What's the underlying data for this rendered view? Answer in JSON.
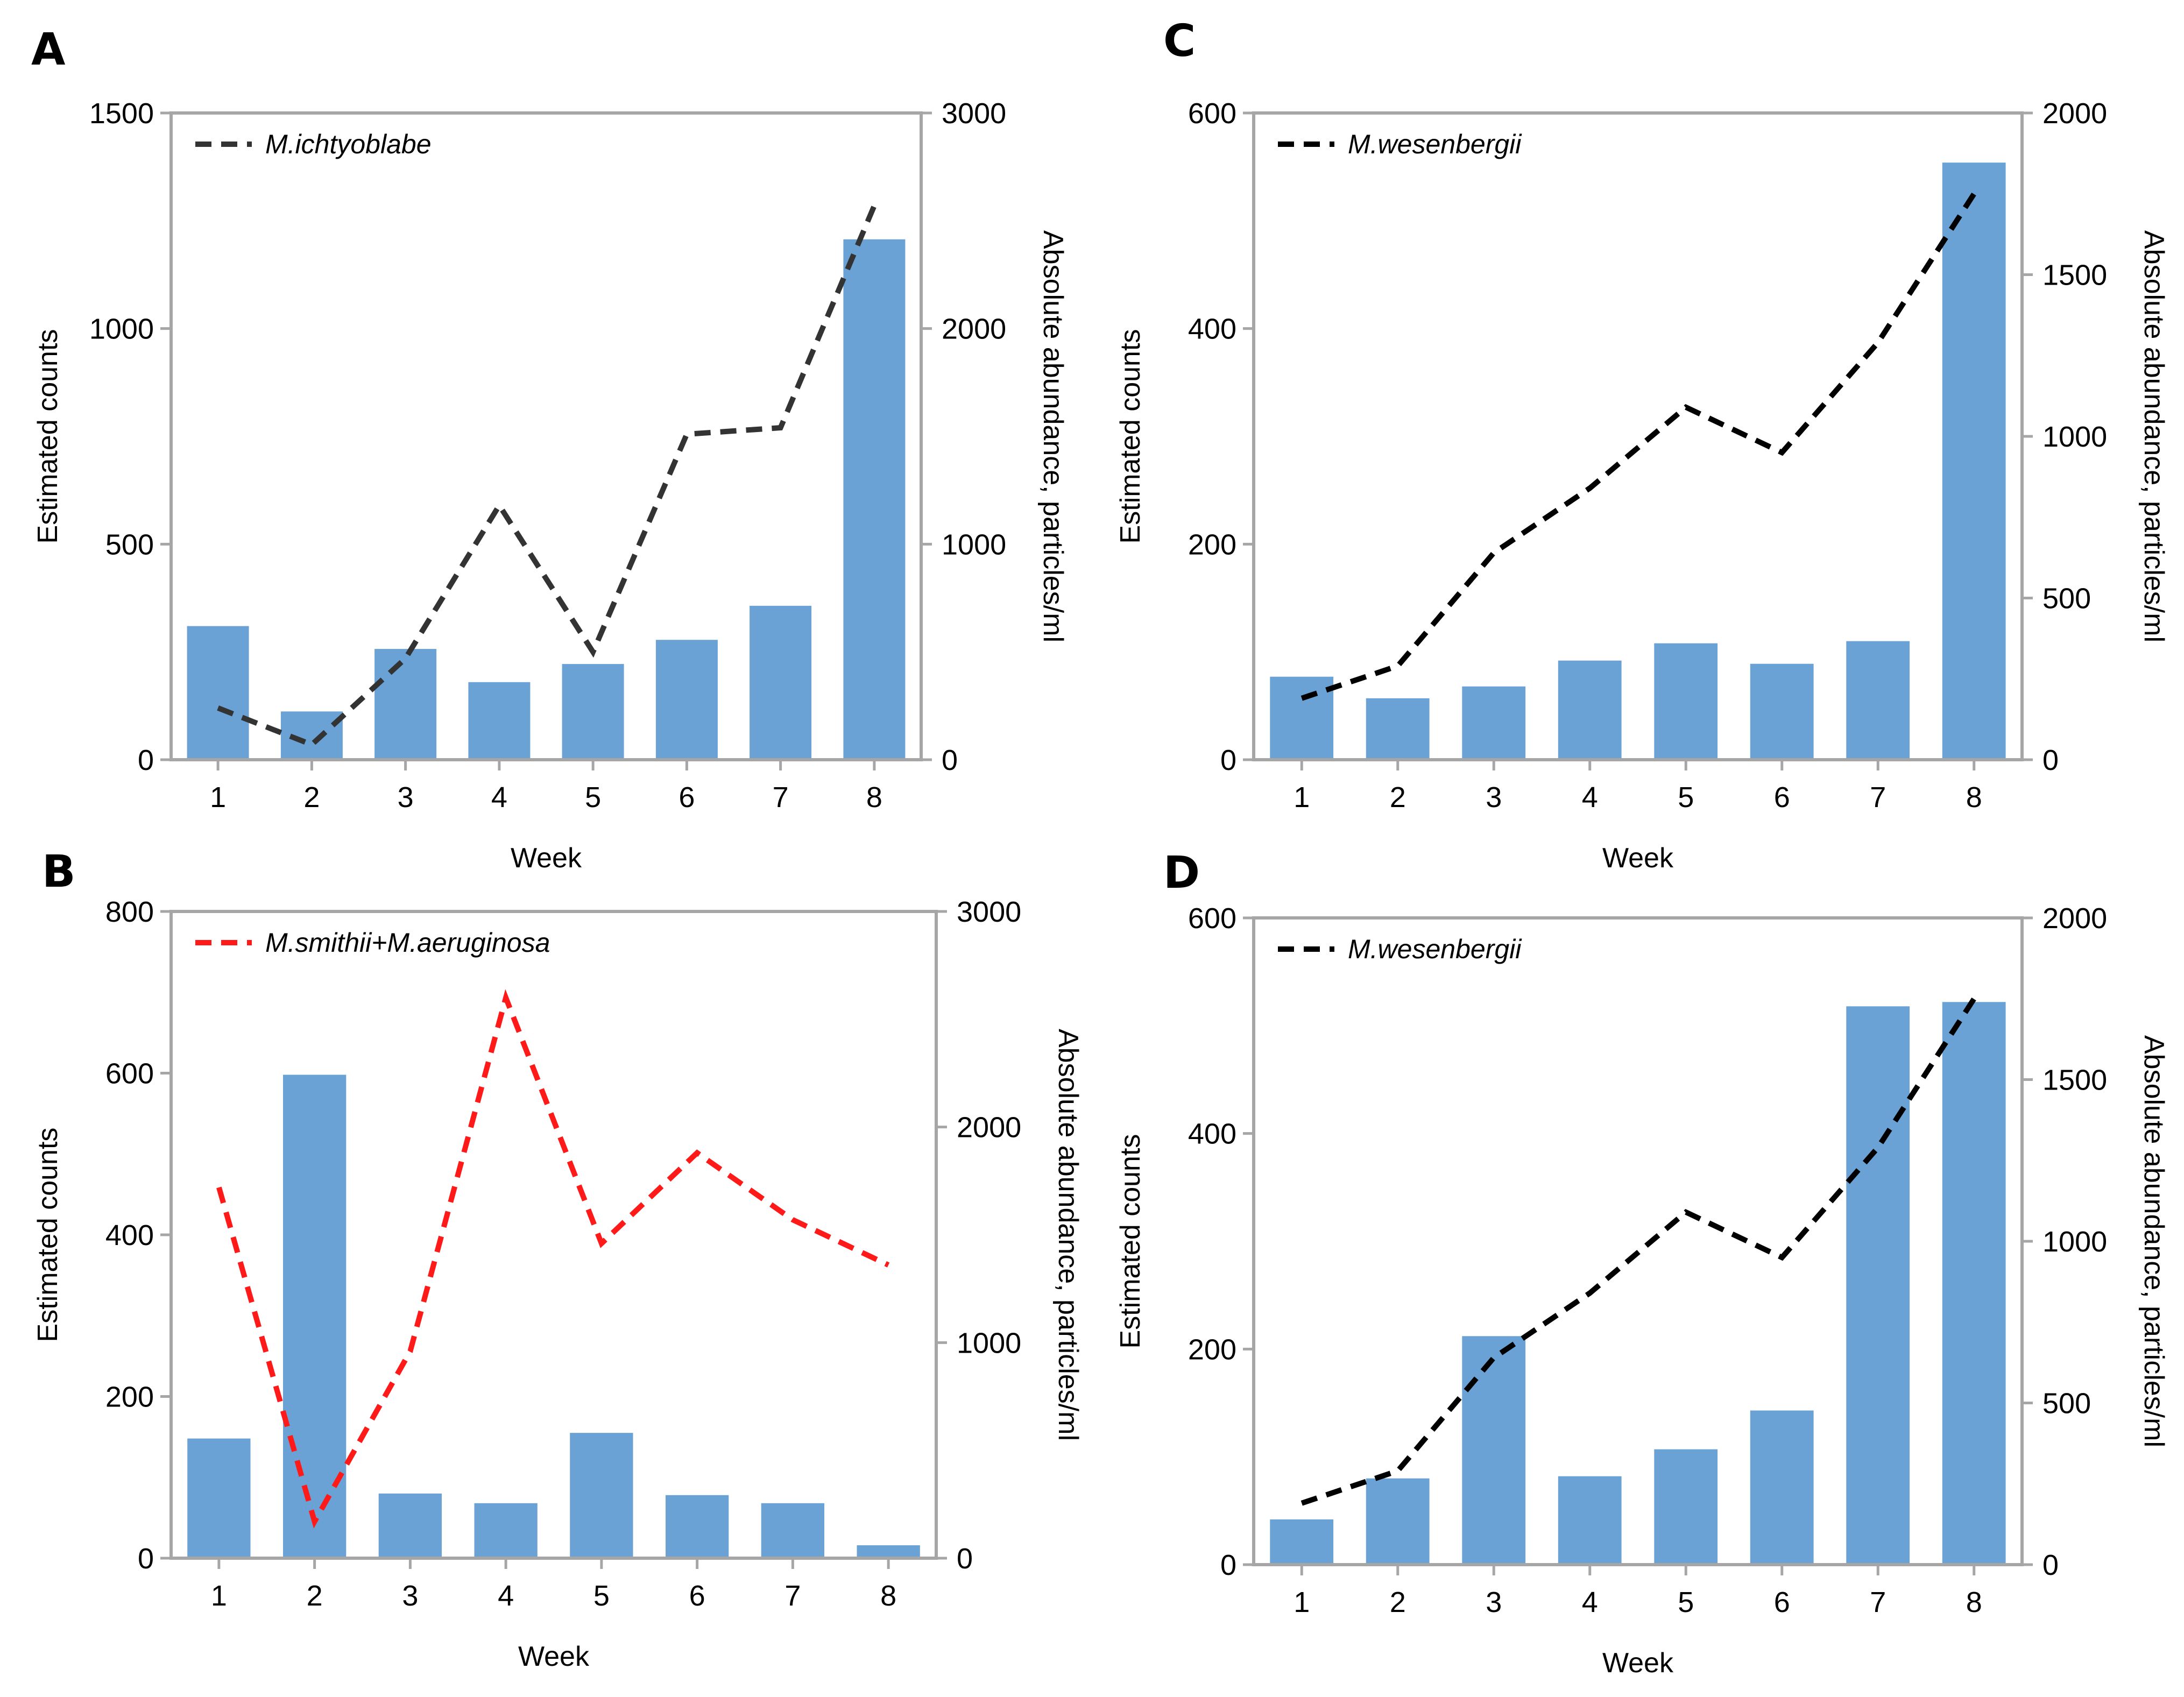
{
  "colors": {
    "bar": "#6aa2d6",
    "frame": "#a6a6a6",
    "line_dark": "#333333",
    "line_black": "#000000",
    "line_red": "#ff1a1a"
  },
  "chart_data": [
    {
      "panel": "A",
      "type": "bar+line",
      "title": "",
      "xlabel": "Week",
      "ylabel": "Estimated counts",
      "y2label": "Absolute abundance, particles/ml",
      "categories": [
        "1",
        "2",
        "3",
        "4",
        "5",
        "6",
        "7",
        "8"
      ],
      "ylim": [
        0,
        1500
      ],
      "yticks": [
        "0",
        "500",
        "1000",
        "1500"
      ],
      "y2lim": [
        0,
        3000
      ],
      "y2ticks": [
        "0",
        "1000",
        "2000",
        "3000"
      ],
      "series": [
        {
          "name": "Estimated counts",
          "type": "bar",
          "axis": "left",
          "values": [
            310,
            112,
            257,
            180,
            222,
            278,
            357,
            1207
          ]
        },
        {
          "name": "M.ichtyoblabe",
          "type": "line",
          "axis": "right",
          "color": "#333333",
          "values": [
            240,
            70,
            470,
            1180,
            500,
            1510,
            1540,
            2570
          ]
        }
      ],
      "legend": {
        "label": "M.ichtyoblabe",
        "position": "top-left"
      }
    },
    {
      "panel": "B",
      "type": "bar+line",
      "title": "",
      "xlabel": "Week",
      "ylabel": "Estimated counts",
      "y2label": "Absolute abundance, particles/ml",
      "categories": [
        "1",
        "2",
        "3",
        "4",
        "5",
        "6",
        "7",
        "8"
      ],
      "ylim": [
        0,
        800
      ],
      "yticks": [
        "0",
        "200",
        "400",
        "600",
        "800"
      ],
      "y2lim": [
        0,
        3000
      ],
      "y2ticks": [
        "0",
        "1000",
        "2000",
        "3000"
      ],
      "series": [
        {
          "name": "Estimated counts",
          "type": "bar",
          "axis": "left",
          "values": [
            148,
            598,
            80,
            68,
            155,
            78,
            68,
            16
          ]
        },
        {
          "name": "M.smithii+M.aeruginosa",
          "type": "line",
          "axis": "right",
          "color": "#ff1a1a",
          "values": [
            1720,
            170,
            960,
            2600,
            1460,
            1880,
            1570,
            1360
          ]
        }
      ],
      "legend": {
        "label": "M.smithii+M.aeruginosa",
        "position": "top-left"
      }
    },
    {
      "panel": "C",
      "type": "bar+line",
      "title": "",
      "xlabel": "Week",
      "ylabel": "Estimated counts",
      "y2label": "Absolute abundance, particles/ml",
      "categories": [
        "1",
        "2",
        "3",
        "4",
        "5",
        "6",
        "7",
        "8"
      ],
      "ylim": [
        0,
        600
      ],
      "yticks": [
        "0",
        "200",
        "400",
        "600"
      ],
      "y2lim": [
        0,
        2000
      ],
      "y2ticks": [
        "0",
        "500",
        "1000",
        "1500",
        "2000"
      ],
      "series": [
        {
          "name": "Estimated counts",
          "type": "bar",
          "axis": "left",
          "values": [
            77,
            57,
            68,
            92,
            108,
            89,
            110,
            554
          ]
        },
        {
          "name": "M.wesenbergii",
          "type": "line",
          "axis": "right",
          "color": "#000000",
          "values": [
            190,
            290,
            640,
            840,
            1090,
            950,
            1290,
            1750
          ]
        }
      ],
      "legend": {
        "label": "M.wesenbergii",
        "position": "top-left"
      }
    },
    {
      "panel": "D",
      "type": "bar+line",
      "title": "",
      "xlabel": "Week",
      "ylabel": "Estimated counts",
      "y2label": "Absolute abundance, particles/ml",
      "categories": [
        "1",
        "2",
        "3",
        "4",
        "5",
        "6",
        "7",
        "8"
      ],
      "ylim": [
        0,
        600
      ],
      "yticks": [
        "0",
        "200",
        "400",
        "600"
      ],
      "y2lim": [
        0,
        2000
      ],
      "y2ticks": [
        "0",
        "500",
        "1000",
        "1500",
        "2000"
      ],
      "series": [
        {
          "name": "Estimated counts",
          "type": "bar",
          "axis": "left",
          "values": [
            42,
            80,
            212,
            82,
            107,
            143,
            518,
            522
          ]
        },
        {
          "name": "M.wesenbergii",
          "type": "line",
          "axis": "right",
          "color": "#000000",
          "values": [
            190,
            290,
            640,
            840,
            1090,
            950,
            1290,
            1750
          ]
        }
      ],
      "legend": {
        "label": "M.wesenbergii",
        "position": "top-left"
      }
    }
  ]
}
